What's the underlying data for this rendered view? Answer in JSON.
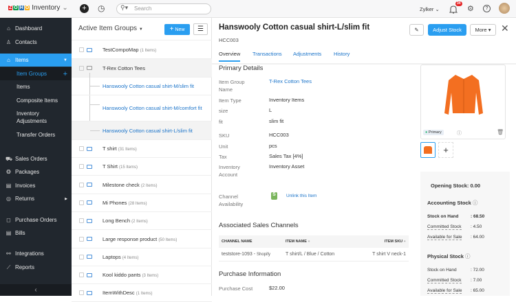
{
  "topbar": {
    "app_name": "Inventory",
    "logo_letters": [
      "Z",
      "O",
      "H",
      "O"
    ],
    "search_placeholder": "Search",
    "org": "Zylker",
    "notif_count": "34"
  },
  "sidebar": {
    "items": [
      {
        "label": "Dashboard",
        "icon": "⌂"
      },
      {
        "label": "Contacts",
        "icon": "♙"
      },
      {
        "label": "Items",
        "icon": "⌂"
      },
      {
        "label": "Item Groups"
      },
      {
        "label": "Items"
      },
      {
        "label": "Composite Items"
      },
      {
        "label": "Inventory Adjustments"
      },
      {
        "label": "Transfer Orders"
      },
      {
        "label": "Sales Orders",
        "icon": "⛟"
      },
      {
        "label": "Packages",
        "icon": "❂"
      },
      {
        "label": "Invoices",
        "icon": "▤"
      },
      {
        "label": "Returns",
        "icon": "◎"
      },
      {
        "label": "Purchase Orders",
        "icon": "◻"
      },
      {
        "label": "Bills",
        "icon": "▤"
      },
      {
        "label": "Integrations",
        "icon": "⚯"
      },
      {
        "label": "Reports",
        "icon": "⟋"
      }
    ]
  },
  "list": {
    "title": "Active Item Groups",
    "new_label": "New",
    "rows": [
      {
        "name": "TestCompoMap",
        "count": "(1 Items)"
      },
      {
        "name": "T-Rex Cotton Tees",
        "count": ""
      },
      {
        "name": "T shirt",
        "count": "(31 Items)"
      },
      {
        "name": "T Shirt",
        "count": "(15 Items)"
      },
      {
        "name": "Milestone check",
        "count": "(2 Items)"
      },
      {
        "name": "Mi Phones",
        "count": "(28 Items)"
      },
      {
        "name": "Long Bench",
        "count": "(2 Items)"
      },
      {
        "name": "Large response product",
        "count": "(50 Items)"
      },
      {
        "name": "Laptops",
        "count": "(4 Items)"
      },
      {
        "name": "Kool kiddo pants",
        "count": "(3 Items)"
      },
      {
        "name": "ItemWithDesc",
        "count": "(1 Items)"
      }
    ],
    "children": [
      "Hanswooly Cotton casual shirt-M/slim fit",
      "Hanswooly Cotton casual shirt-M/comfort fit",
      "Hanswooly Cotton casual shirt-L/slim fit"
    ]
  },
  "detail": {
    "title": "Hanswooly Cotton casual shirt-L/slim fit",
    "sku": "HCC003",
    "adjust_label": "Adjust Stock",
    "more_label": "More",
    "tabs": [
      "Overview",
      "Transactions",
      "Adjustments",
      "History"
    ],
    "primary_title": "Primary Details",
    "fields": [
      {
        "label": "Item Group Name",
        "value": "T-Rex Cotton Tees"
      },
      {
        "label": "Item Type",
        "value": "Inventory Items"
      },
      {
        "label": "size",
        "value": "L"
      },
      {
        "label": "fit",
        "value": "slim fit"
      },
      {
        "label": "SKU",
        "value": "HCC003"
      },
      {
        "label": "Unit",
        "value": "pcs"
      },
      {
        "label": "Tax",
        "value": "Sales Tax [4%]"
      },
      {
        "label": "Inventory Account",
        "value": "Inventory Asset"
      },
      {
        "label": "Channel Availability",
        "value": "Unlink this Item"
      }
    ],
    "primary_badge": "Primary",
    "channels_title": "Associated Sales Channels",
    "channel_headers": [
      "CHANNEL NAME",
      "ITEM NAME",
      "ITEM SKU"
    ],
    "channel_row": {
      "channel": "teststore-1093",
      "platform": "Shopify",
      "item": "T shirt/L / Blue / Cotton",
      "sku": "T shirt V neck-1"
    },
    "purchase_title": "Purchase Information",
    "purchase_label": "Purchase Cost",
    "purchase_value": "$22.00"
  },
  "stock": {
    "opening": "Opening Stock: 0.00",
    "accounting": {
      "title": "Accounting Stock",
      "rows": [
        {
          "label": "Stock on Hand",
          "value": ": 68.50"
        },
        {
          "label": "Committed Stock",
          "value": ": 4.50"
        },
        {
          "label": "Available for Sale",
          "value": ": 64.00"
        }
      ]
    },
    "physical": {
      "title": "Physical Stock",
      "rows": [
        {
          "label": "Stock on Hand",
          "value": ": 72.00"
        },
        {
          "label": "Committed Stock",
          "value": ": 7.00"
        },
        {
          "label": "Available for Sale",
          "value": ": 65.00"
        }
      ]
    }
  },
  "colors": {
    "accent": "#2a9ef0",
    "sidebar": "#21272e",
    "link": "#1a73c9",
    "shirt": "#f36f21"
  }
}
